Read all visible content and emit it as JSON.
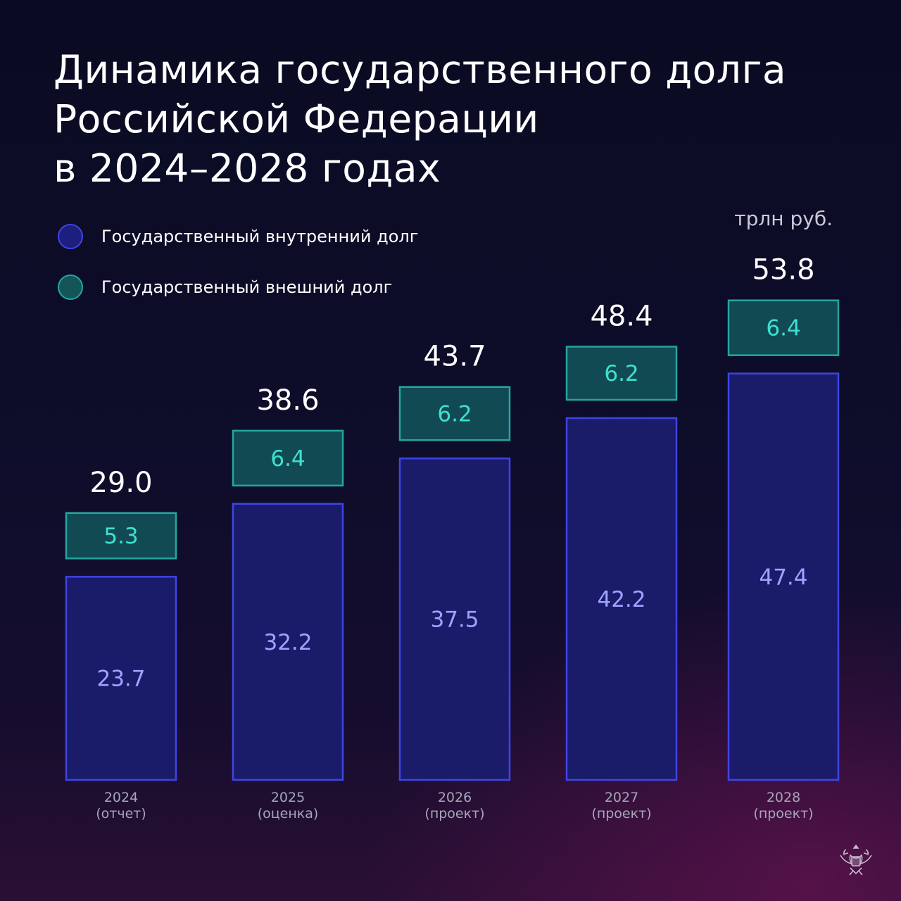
{
  "title_lines": [
    "Динамика государственного долга",
    "Российской Федерации",
    "в 2024–2028 годах"
  ],
  "unit": "трлн руб.",
  "legend": [
    {
      "label": "Государственный внутренний долг",
      "color": "#2a2fc0"
    },
    {
      "label": "Государственный внешний долг",
      "color": "#1a6a6a"
    }
  ],
  "colors": {
    "domestic_fill": "#1a1c6a",
    "domestic_stroke": "#3f44e6",
    "domestic_label": "#9ea3ff",
    "external_fill": "#124a54",
    "external_stroke": "#24a6a0",
    "external_label": "#3ee0d0",
    "total_label": "#ffffff",
    "axis_label": "#a6a6b8"
  },
  "emblem": "double-headed-eagle-icon",
  "chart_data": {
    "type": "bar",
    "stacked": true,
    "categories": [
      "2024",
      "2025",
      "2026",
      "2027",
      "2028"
    ],
    "category_notes": [
      "(отчет)",
      "(оценка)",
      "(проект)",
      "(проект)",
      "(проект)"
    ],
    "series": [
      {
        "name": "Государственный внутренний долг",
        "values": [
          23.7,
          32.2,
          37.5,
          42.2,
          47.4
        ]
      },
      {
        "name": "Государственный внешний долг",
        "values": [
          5.3,
          6.4,
          6.2,
          6.2,
          6.4
        ]
      }
    ],
    "totals": [
      "29.0",
      "38.6",
      "43.7",
      "48.4",
      "53.8"
    ],
    "value_labels": {
      "domestic": [
        "23.7",
        "32.2",
        "37.5",
        "42.2",
        "47.4"
      ],
      "external": [
        "5.3",
        "6.4",
        "6.2",
        "6.2",
        "6.4"
      ]
    },
    "ylabel": "трлн руб.",
    "ylim": [
      0,
      56
    ],
    "grid": false,
    "legend_position": "top-left"
  }
}
